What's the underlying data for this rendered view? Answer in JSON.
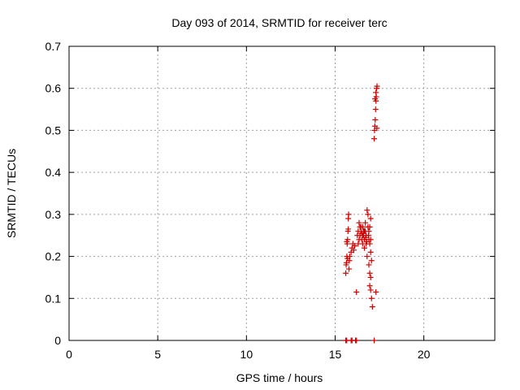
{
  "chart_data": {
    "type": "scatter",
    "title": "Day 093 of 2014, SRMTID for receiver terc",
    "xlabel": "GPS time / hours",
    "ylabel": "SRMTID / TECUs",
    "xlim": [
      0,
      24
    ],
    "ylim": [
      0,
      0.7
    ],
    "xticks": [
      0,
      5,
      10,
      15,
      20
    ],
    "yticks": [
      0,
      0.1,
      0.2,
      0.3,
      0.4,
      0.5,
      0.6,
      0.7
    ],
    "xtick_labels": [
      "0",
      "5",
      "10",
      "15",
      "20"
    ],
    "ytick_labels": [
      "0",
      "0.1",
      "0.2",
      "0.3",
      "0.4",
      "0.5",
      "0.6",
      "0.7"
    ],
    "grid": true,
    "marker": "+",
    "color": "#d00000",
    "series": [
      {
        "name": "SRMTID",
        "points": [
          [
            15.6,
            0.0
          ],
          [
            15.65,
            0.0
          ],
          [
            15.9,
            0.0
          ],
          [
            15.95,
            0.0
          ],
          [
            16.15,
            0.0
          ],
          [
            16.2,
            0.0
          ],
          [
            17.2,
            0.0
          ],
          [
            15.6,
            0.16
          ],
          [
            15.62,
            0.18
          ],
          [
            15.64,
            0.185
          ],
          [
            15.66,
            0.2
          ],
          [
            15.68,
            0.23
          ],
          [
            15.7,
            0.24
          ],
          [
            15.72,
            0.26
          ],
          [
            15.74,
            0.29
          ],
          [
            15.76,
            0.3
          ],
          [
            15.78,
            0.17
          ],
          [
            15.8,
            0.19
          ],
          [
            15.82,
            0.2
          ],
          [
            15.7,
            0.195
          ],
          [
            15.66,
            0.235
          ],
          [
            15.74,
            0.265
          ],
          [
            15.9,
            0.21
          ],
          [
            15.95,
            0.22
          ],
          [
            16.0,
            0.23
          ],
          [
            16.05,
            0.215
          ],
          [
            16.1,
            0.225
          ],
          [
            16.2,
            0.115
          ],
          [
            16.25,
            0.25
          ],
          [
            16.3,
            0.26
          ],
          [
            16.35,
            0.28
          ],
          [
            16.4,
            0.27
          ],
          [
            16.3,
            0.23
          ],
          [
            16.35,
            0.24
          ],
          [
            16.4,
            0.25
          ],
          [
            16.45,
            0.26
          ],
          [
            16.5,
            0.255
          ],
          [
            16.5,
            0.24
          ],
          [
            16.55,
            0.23
          ],
          [
            16.55,
            0.27
          ],
          [
            16.6,
            0.26
          ],
          [
            16.6,
            0.25
          ],
          [
            16.65,
            0.24
          ],
          [
            16.65,
            0.22
          ],
          [
            16.7,
            0.28
          ],
          [
            16.7,
            0.26
          ],
          [
            16.75,
            0.25
          ],
          [
            16.75,
            0.23
          ],
          [
            16.8,
            0.31
          ],
          [
            16.8,
            0.2
          ],
          [
            16.85,
            0.3
          ],
          [
            16.85,
            0.27
          ],
          [
            16.9,
            0.26
          ],
          [
            16.9,
            0.24
          ],
          [
            16.95,
            0.27
          ],
          [
            16.95,
            0.23
          ],
          [
            17.0,
            0.24
          ],
          [
            17.0,
            0.21
          ],
          [
            16.45,
            0.27
          ],
          [
            16.55,
            0.25
          ],
          [
            16.65,
            0.26
          ],
          [
            16.72,
            0.245
          ],
          [
            16.78,
            0.235
          ],
          [
            16.88,
            0.25
          ],
          [
            16.9,
            0.18
          ],
          [
            16.95,
            0.16
          ],
          [
            16.95,
            0.13
          ],
          [
            17.0,
            0.12
          ],
          [
            17.05,
            0.1
          ],
          [
            17.1,
            0.08
          ],
          [
            17.0,
            0.15
          ],
          [
            17.05,
            0.19
          ],
          [
            17.0,
            0.29
          ],
          [
            17.3,
            0.115
          ],
          [
            17.2,
            0.48
          ],
          [
            17.22,
            0.5
          ],
          [
            17.24,
            0.51
          ],
          [
            17.26,
            0.525
          ],
          [
            17.28,
            0.55
          ],
          [
            17.3,
            0.57
          ],
          [
            17.32,
            0.58
          ],
          [
            17.34,
            0.6
          ],
          [
            17.36,
            0.605
          ],
          [
            17.3,
            0.59
          ],
          [
            17.25,
            0.575
          ],
          [
            17.35,
            0.505
          ]
        ]
      }
    ]
  }
}
